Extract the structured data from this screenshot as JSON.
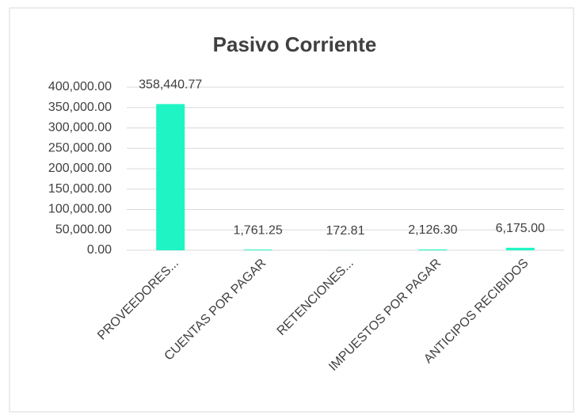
{
  "chart_data": {
    "type": "bar",
    "title": "Pasivo Corriente",
    "categories": [
      "PROVEEDORES...",
      "CUENTAS POR PAGAR",
      "RETENCIONES...",
      "IMPUESTOS POR PAGAR",
      "ANTICIPOS RECIBIDOS"
    ],
    "values": [
      358440.77,
      1761.25,
      172.81,
      2126.3,
      6175.0
    ],
    "value_labels": [
      "358,440.77",
      "1,761.25",
      "172.81",
      "2,126.30",
      "6,175.00"
    ],
    "color": "#1ff5c4",
    "ylim": [
      0,
      400000
    ],
    "yticks": [
      {
        "value": 0,
        "label": "0.00"
      },
      {
        "value": 50000,
        "label": "50,000.00"
      },
      {
        "value": 100000,
        "label": "100,000.00"
      },
      {
        "value": 150000,
        "label": "150,000.00"
      },
      {
        "value": 200000,
        "label": "200,000.00"
      },
      {
        "value": 250000,
        "label": "250,000.00"
      },
      {
        "value": 300000,
        "label": "300,000.00"
      },
      {
        "value": 350000,
        "label": "350,000.00"
      },
      {
        "value": 400000,
        "label": "400,000.00"
      }
    ],
    "grid": true
  }
}
